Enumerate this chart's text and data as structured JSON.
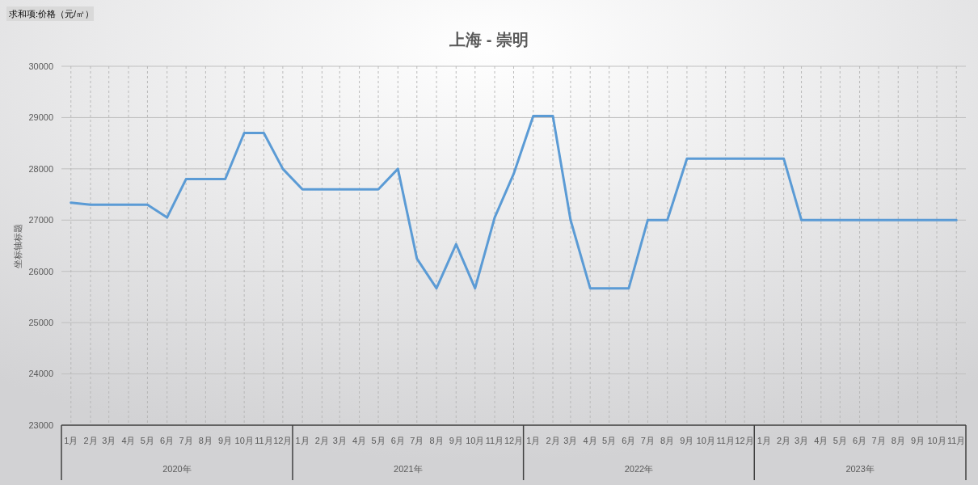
{
  "chart_data": {
    "type": "line",
    "title": "上海 - 崇明",
    "ylabel": "坐标轴标题",
    "annotations": [
      "求和项:价格（元/㎡）",
      "2020年",
      "2021年",
      "2022年",
      "2023年"
    ],
    "x": [
      "2020-01",
      "2020-02",
      "2020-03",
      "2020-04",
      "2020-05",
      "2020-06",
      "2020-07",
      "2020-08",
      "2020-09",
      "2020-10",
      "2020-11",
      "2020-12",
      "2021-01",
      "2021-02",
      "2021-03",
      "2021-04",
      "2021-05",
      "2021-06",
      "2021-07",
      "2021-08",
      "2021-09",
      "2021-10",
      "2021-11",
      "2021-12",
      "2022-01",
      "2022-02",
      "2022-03",
      "2022-04",
      "2022-05",
      "2022-06",
      "2022-07",
      "2022-08",
      "2022-09",
      "2022-10",
      "2022-11",
      "2022-12",
      "2023-01",
      "2023-02",
      "2023-03",
      "2023-04",
      "2023-05",
      "2023-06",
      "2023-07",
      "2023-08",
      "2023-09",
      "2023-10",
      "2023-11"
    ],
    "xlim": [
      "2019-12-17",
      "2023-11-16"
    ],
    "xticks": [
      {
        "value": "2020-01",
        "label": "1月"
      },
      {
        "value": "2020-02",
        "label": "2月"
      },
      {
        "value": "2020-03",
        "label": "3月"
      },
      {
        "value": "2020-04",
        "label": "4月"
      },
      {
        "value": "2020-05",
        "label": "5月"
      },
      {
        "value": "2020-06",
        "label": "6月"
      },
      {
        "value": "2020-07",
        "label": "7月"
      },
      {
        "value": "2020-08",
        "label": "8月"
      },
      {
        "value": "2020-09",
        "label": "9月"
      },
      {
        "value": "2020-10",
        "label": "10月"
      },
      {
        "value": "2020-11",
        "label": "11月"
      },
      {
        "value": "2020-12",
        "label": "12月"
      },
      {
        "value": "2021-01",
        "label": "1月"
      },
      {
        "value": "2021-02",
        "label": "2月"
      },
      {
        "value": "2021-03",
        "label": "3月"
      },
      {
        "value": "2021-04",
        "label": "4月"
      },
      {
        "value": "2021-05",
        "label": "5月"
      },
      {
        "value": "2021-06",
        "label": "6月"
      },
      {
        "value": "2021-07",
        "label": "7月"
      },
      {
        "value": "2021-08",
        "label": "8月"
      },
      {
        "value": "2021-09",
        "label": "9月"
      },
      {
        "value": "2021-10",
        "label": "10月"
      },
      {
        "value": "2021-11",
        "label": "11月"
      },
      {
        "value": "2021-12",
        "label": "12月"
      },
      {
        "value": "2022-01",
        "label": "1月"
      },
      {
        "value": "2022-02",
        "label": "2月"
      },
      {
        "value": "2022-03",
        "label": "3月"
      },
      {
        "value": "2022-04",
        "label": "4月"
      },
      {
        "value": "2022-05",
        "label": "5月"
      },
      {
        "value": "2022-06",
        "label": "6月"
      },
      {
        "value": "2022-07",
        "label": "7月"
      },
      {
        "value": "2022-08",
        "label": "8月"
      },
      {
        "value": "2022-09",
        "label": "9月"
      },
      {
        "value": "2022-10",
        "label": "10月"
      },
      {
        "value": "2022-11",
        "label": "11月"
      },
      {
        "value": "2022-12",
        "label": "12月"
      },
      {
        "value": "2023-01",
        "label": "1月"
      },
      {
        "value": "2023-02",
        "label": "2月"
      },
      {
        "value": "2023-03",
        "label": "3月"
      },
      {
        "value": "2023-04",
        "label": "4月"
      },
      {
        "value": "2023-05",
        "label": "5月"
      },
      {
        "value": "2023-06",
        "label": "6月"
      },
      {
        "value": "2023-07",
        "label": "7月"
      },
      {
        "value": "2023-08",
        "label": "8月"
      },
      {
        "value": "2023-09",
        "label": "9月"
      },
      {
        "value": "2023-10",
        "label": "10月"
      },
      {
        "value": "2023-11",
        "label": "11月"
      }
    ],
    "series": [
      {
        "color": "#5b9bd5",
        "values": [
          27340,
          27300,
          27300,
          27300,
          27300,
          27050,
          27800,
          27800,
          27800,
          28700,
          28700,
          28000,
          27600,
          27600,
          27600,
          27600,
          27600,
          28000,
          26250,
          25670,
          26530,
          25670,
          27050,
          27900,
          29030,
          29030,
          27000,
          25670,
          25670,
          25670,
          27000,
          27000,
          28200,
          28200,
          28200,
          28200,
          28200,
          28200,
          27000,
          27000,
          27000,
          27000,
          27000,
          27000,
          27000,
          27000,
          27000
        ]
      }
    ],
    "ylim": [
      23000,
      30000
    ],
    "yticks": [
      23000,
      24000,
      25000,
      26000,
      27000,
      28000,
      29000,
      30000
    ],
    "grid": true
  }
}
